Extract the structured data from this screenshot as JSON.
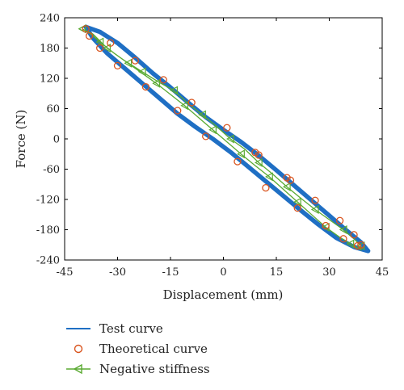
{
  "chart_data": {
    "type": "line",
    "title": "",
    "xlabel": "Displacement (mm)",
    "ylabel": "Force (N)",
    "xlim": [
      -45,
      45
    ],
    "ylim": [
      -240,
      240
    ],
    "xticks": [
      -45,
      -30,
      -15,
      0,
      15,
      30,
      45
    ],
    "yticks": [
      240,
      180,
      120,
      60,
      0,
      -60,
      -120,
      -180,
      -240
    ],
    "grid": false,
    "legend_position": "bottom",
    "series": [
      {
        "name": "Test curve",
        "color": "#1f6fc4",
        "style": "thick-line",
        "upper": [
          [
            -39,
            222
          ],
          [
            -35,
            212
          ],
          [
            -30,
            190
          ],
          [
            -25,
            161
          ],
          [
            -20,
            130
          ],
          [
            -15,
            102
          ],
          [
            -10,
            72
          ],
          [
            -5,
            43
          ],
          [
            0,
            18
          ],
          [
            5,
            -6
          ],
          [
            10,
            -33
          ],
          [
            15,
            -62
          ],
          [
            20,
            -92
          ],
          [
            25,
            -122
          ],
          [
            30,
            -152
          ],
          [
            35,
            -182
          ],
          [
            39,
            -205
          ],
          [
            41,
            -222
          ]
        ],
        "lower": [
          [
            41,
            -222
          ],
          [
            37,
            -214
          ],
          [
            32,
            -196
          ],
          [
            27,
            -170
          ],
          [
            22,
            -142
          ],
          [
            17,
            -113
          ],
          [
            12,
            -84
          ],
          [
            7,
            -55
          ],
          [
            2,
            -26
          ],
          [
            -3,
            0
          ],
          [
            -8,
            24
          ],
          [
            -13,
            50
          ],
          [
            -18,
            80
          ],
          [
            -23,
            110
          ],
          [
            -28,
            140
          ],
          [
            -33,
            170
          ],
          [
            -37,
            200
          ],
          [
            -39,
            222
          ]
        ]
      },
      {
        "name": "Theoretical curve",
        "color": "#d9541e",
        "style": "open-circle",
        "points": [
          [
            -38,
            204
          ],
          [
            -35,
            180
          ],
          [
            -30,
            145
          ],
          [
            -22,
            103
          ],
          [
            -13,
            56
          ],
          [
            -5,
            5
          ],
          [
            4,
            -45
          ],
          [
            12,
            -97
          ],
          [
            21,
            -137
          ],
          [
            29,
            -172
          ],
          [
            34,
            -198
          ],
          [
            38,
            -212
          ],
          [
            -39,
            218
          ],
          [
            -32,
            190
          ],
          [
            -25,
            155
          ],
          [
            -17,
            117
          ],
          [
            -9,
            72
          ],
          [
            1,
            22
          ],
          [
            9,
            -27
          ],
          [
            18,
            -77
          ],
          [
            26,
            -122
          ],
          [
            33,
            -162
          ],
          [
            37,
            -190
          ],
          [
            39,
            -210
          ],
          [
            10,
            -32
          ],
          [
            19,
            -82
          ]
        ]
      },
      {
        "name": "Negative stiffness",
        "color": "#5aaa32",
        "style": "line-left-triangle",
        "points": [
          [
            -40,
            218
          ],
          [
            -37,
            208
          ],
          [
            -33,
            180
          ],
          [
            -28,
            155
          ],
          [
            -23,
            133
          ],
          [
            -18,
            111
          ],
          [
            -14,
            96
          ],
          [
            -10,
            70
          ],
          [
            -6,
            48
          ],
          [
            -2,
            25
          ],
          [
            2,
            0
          ],
          [
            6,
            -20
          ],
          [
            10,
            -47
          ],
          [
            14,
            -70
          ],
          [
            18,
            -95
          ],
          [
            22,
            -118
          ],
          [
            26,
            -140
          ],
          [
            30,
            -160
          ],
          [
            34,
            -180
          ],
          [
            37,
            -198
          ],
          [
            39,
            -212
          ],
          [
            39,
            -220
          ],
          [
            36,
            -208
          ],
          [
            33,
            -195
          ],
          [
            29,
            -175
          ],
          [
            25,
            -150
          ],
          [
            21,
            -125
          ],
          [
            17,
            -100
          ],
          [
            13,
            -75
          ],
          [
            9,
            -53
          ],
          [
            5,
            -30
          ],
          [
            1,
            -6
          ],
          [
            -3,
            18
          ],
          [
            -7,
            42
          ],
          [
            -11,
            66
          ],
          [
            -15,
            88
          ],
          [
            -19,
            110
          ],
          [
            -23,
            130
          ],
          [
            -27,
            150
          ],
          [
            -31,
            170
          ],
          [
            -35,
            192
          ],
          [
            -38,
            210
          ],
          [
            -40,
            218
          ]
        ],
        "markers_every": 2
      }
    ]
  }
}
